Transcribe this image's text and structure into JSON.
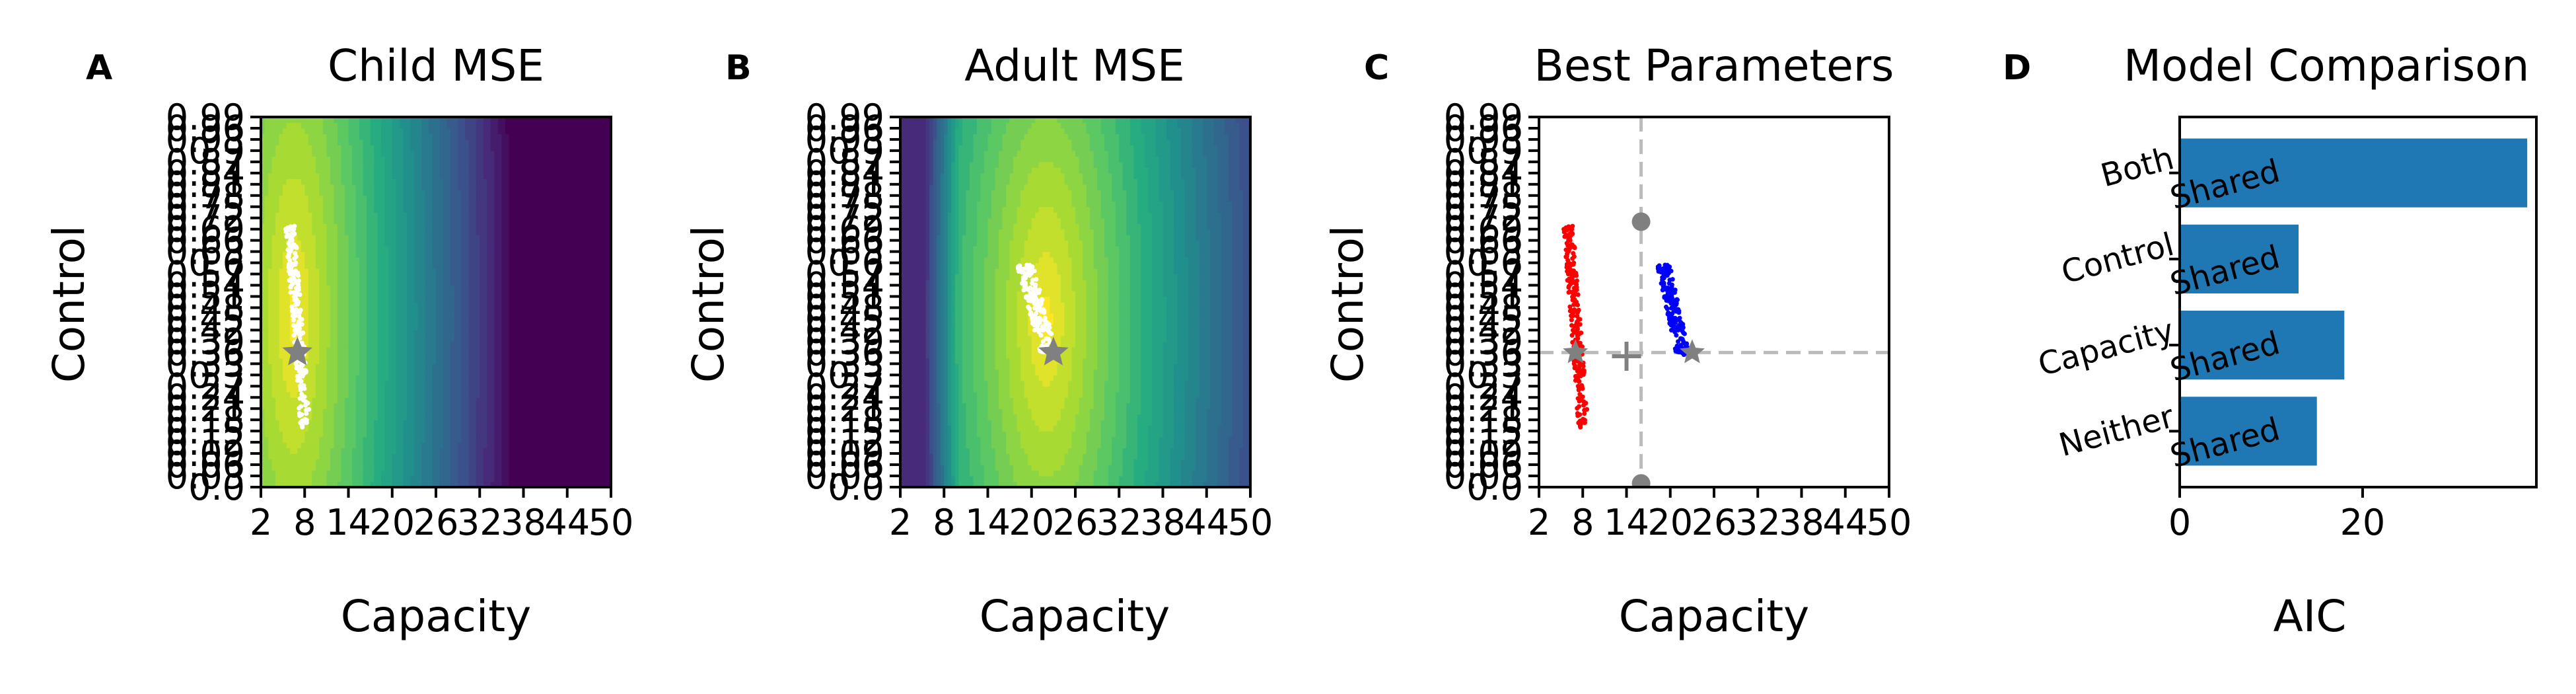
{
  "figure": {
    "panel_letters": [
      "A",
      "B",
      "C",
      "D"
    ]
  },
  "chart_data": [
    {
      "type": "heatmap",
      "panel": "A",
      "title": "Child MSE",
      "xlabel": "Capacity",
      "ylabel": "Control",
      "xlim": [
        2,
        50
      ],
      "ylim": [
        0.0,
        0.99
      ],
      "xticks": [
        2,
        8,
        14,
        20,
        26,
        32,
        38,
        44,
        50
      ],
      "xtick_labels": [
        "2",
        "8",
        "14",
        "20",
        "26",
        "32",
        "38",
        "44",
        "50"
      ],
      "yticks": [
        0.0,
        0.03,
        0.06,
        0.09,
        0.12,
        0.15,
        0.18,
        0.21,
        0.24,
        0.27,
        0.3,
        0.33,
        0.36,
        0.39,
        0.42,
        0.45,
        0.48,
        0.51,
        0.54,
        0.57,
        0.6,
        0.63,
        0.66,
        0.69,
        0.72,
        0.75,
        0.78,
        0.81,
        0.84,
        0.87,
        0.9,
        0.93,
        0.96,
        0.99
      ],
      "ytick_labels": [
        "0.0",
        "0.03",
        "0.06",
        "0.09",
        "0.12",
        "0.15",
        "0.18",
        "0.21",
        "0.24",
        "0.27",
        "0.3",
        "0.33",
        "0.36",
        "0.39",
        "0.42",
        "0.45",
        "0.48",
        "0.51",
        "0.54",
        "0.57",
        "0.6",
        "0.63",
        "0.66",
        "0.69",
        "0.72",
        "0.75",
        "0.78",
        "0.81",
        "0.84",
        "0.87",
        "0.9",
        "0.93",
        "0.96",
        "0.99"
      ],
      "colormap": "viridis",
      "best_center": [
        6.5,
        0.46
      ],
      "marker": {
        "x": 7,
        "y": 0.36,
        "shape": "star",
        "color": "#808080"
      },
      "cloud": {
        "x_range": [
          6,
          9
        ],
        "y_range": [
          0.16,
          0.7
        ],
        "color": "#ffffff"
      }
    },
    {
      "type": "heatmap",
      "panel": "B",
      "title": "Adult MSE",
      "xlabel": "Capacity",
      "ylabel": "Control",
      "xlim": [
        2,
        50
      ],
      "ylim": [
        0.0,
        0.99
      ],
      "xticks": [
        2,
        8,
        14,
        20,
        26,
        32,
        38,
        44,
        50
      ],
      "xtick_labels": [
        "2",
        "8",
        "14",
        "20",
        "26",
        "32",
        "38",
        "44",
        "50"
      ],
      "yticks": [
        0.0,
        0.03,
        0.06,
        0.09,
        0.12,
        0.15,
        0.18,
        0.21,
        0.24,
        0.27,
        0.3,
        0.33,
        0.36,
        0.39,
        0.42,
        0.45,
        0.48,
        0.51,
        0.54,
        0.57,
        0.6,
        0.63,
        0.66,
        0.69,
        0.72,
        0.75,
        0.78,
        0.81,
        0.84,
        0.87,
        0.9,
        0.93,
        0.96,
        0.99
      ],
      "ytick_labels": [
        "0.0",
        "0.03",
        "0.06",
        "0.09",
        "0.12",
        "0.15",
        "0.18",
        "0.21",
        "0.24",
        "0.27",
        "0.3",
        "0.33",
        "0.36",
        "0.39",
        "0.42",
        "0.45",
        "0.48",
        "0.51",
        "0.54",
        "0.57",
        "0.6",
        "0.63",
        "0.66",
        "0.69",
        "0.72",
        "0.75",
        "0.78",
        "0.81",
        "0.84",
        "0.87",
        "0.9",
        "0.93",
        "0.96",
        "0.99"
      ],
      "colormap": "viridis",
      "best_center": [
        22,
        0.45
      ],
      "marker": {
        "x": 23,
        "y": 0.36,
        "shape": "star",
        "color": "#808080"
      },
      "cloud": {
        "x_range": [
          19,
          24
        ],
        "y_range": [
          0.35,
          0.6
        ],
        "color": "#ffffff"
      }
    },
    {
      "type": "scatter",
      "panel": "C",
      "title": "Best Parameters",
      "xlabel": "Capacity",
      "ylabel": "Control",
      "xlim": [
        2,
        50
      ],
      "ylim": [
        0.0,
        0.99
      ],
      "xticks": [
        2,
        8,
        14,
        20,
        26,
        32,
        38,
        44,
        50
      ],
      "xtick_labels": [
        "2",
        "8",
        "14",
        "20",
        "26",
        "32",
        "38",
        "44",
        "50"
      ],
      "yticks": [
        0.0,
        0.03,
        0.06,
        0.09,
        0.12,
        0.15,
        0.18,
        0.21,
        0.24,
        0.27,
        0.3,
        0.33,
        0.36,
        0.39,
        0.42,
        0.45,
        0.48,
        0.51,
        0.54,
        0.57,
        0.6,
        0.63,
        0.66,
        0.69,
        0.72,
        0.75,
        0.78,
        0.81,
        0.84,
        0.87,
        0.9,
        0.93,
        0.96,
        0.99
      ],
      "ytick_labels": [
        "0.0",
        "0.03",
        "0.06",
        "0.09",
        "0.12",
        "0.15",
        "0.18",
        "0.21",
        "0.24",
        "0.27",
        "0.3",
        "0.33",
        "0.36",
        "0.39",
        "0.42",
        "0.45",
        "0.48",
        "0.51",
        "0.54",
        "0.57",
        "0.6",
        "0.63",
        "0.66",
        "0.69",
        "0.72",
        "0.75",
        "0.78",
        "0.81",
        "0.84",
        "0.87",
        "0.9",
        "0.93",
        "0.96",
        "0.99"
      ],
      "series": [
        {
          "color": "#ff0000",
          "x_range": [
            6,
            9
          ],
          "y_range": [
            0.16,
            0.7
          ]
        },
        {
          "color": "#0000ff",
          "x_range": [
            19,
            23
          ],
          "y_range": [
            0.35,
            0.6
          ]
        }
      ],
      "reference_lines": {
        "vline_x": 16,
        "hline_y": 0.36,
        "color": "#bbbbbb"
      },
      "gray_points": [
        {
          "x": 16,
          "y": 0.71
        },
        {
          "x": 16,
          "y": 0.01
        }
      ],
      "star_markers": [
        {
          "x": 7,
          "y": 0.36
        },
        {
          "x": 23,
          "y": 0.36
        }
      ],
      "plus_marker": {
        "x": 14,
        "y": 0.35
      }
    },
    {
      "type": "bar",
      "orientation": "horizontal",
      "panel": "D",
      "title": "Model Comparison",
      "xlabel": "AIC",
      "ylabel": "",
      "categories": [
        "Both\nShared",
        "Control\nShared",
        "Capacity\nShared",
        "Neither\nShared"
      ],
      "category_lines": [
        [
          "Both",
          "Shared"
        ],
        [
          "Control",
          "Shared"
        ],
        [
          "Capacity",
          "Shared"
        ],
        [
          "Neither",
          "Shared"
        ]
      ],
      "values": [
        38,
        13,
        18,
        15
      ],
      "xlim": [
        0,
        39
      ],
      "xticks": [
        0,
        20
      ],
      "xtick_labels": [
        "0",
        "20"
      ],
      "color": "#1f77b4"
    }
  ]
}
